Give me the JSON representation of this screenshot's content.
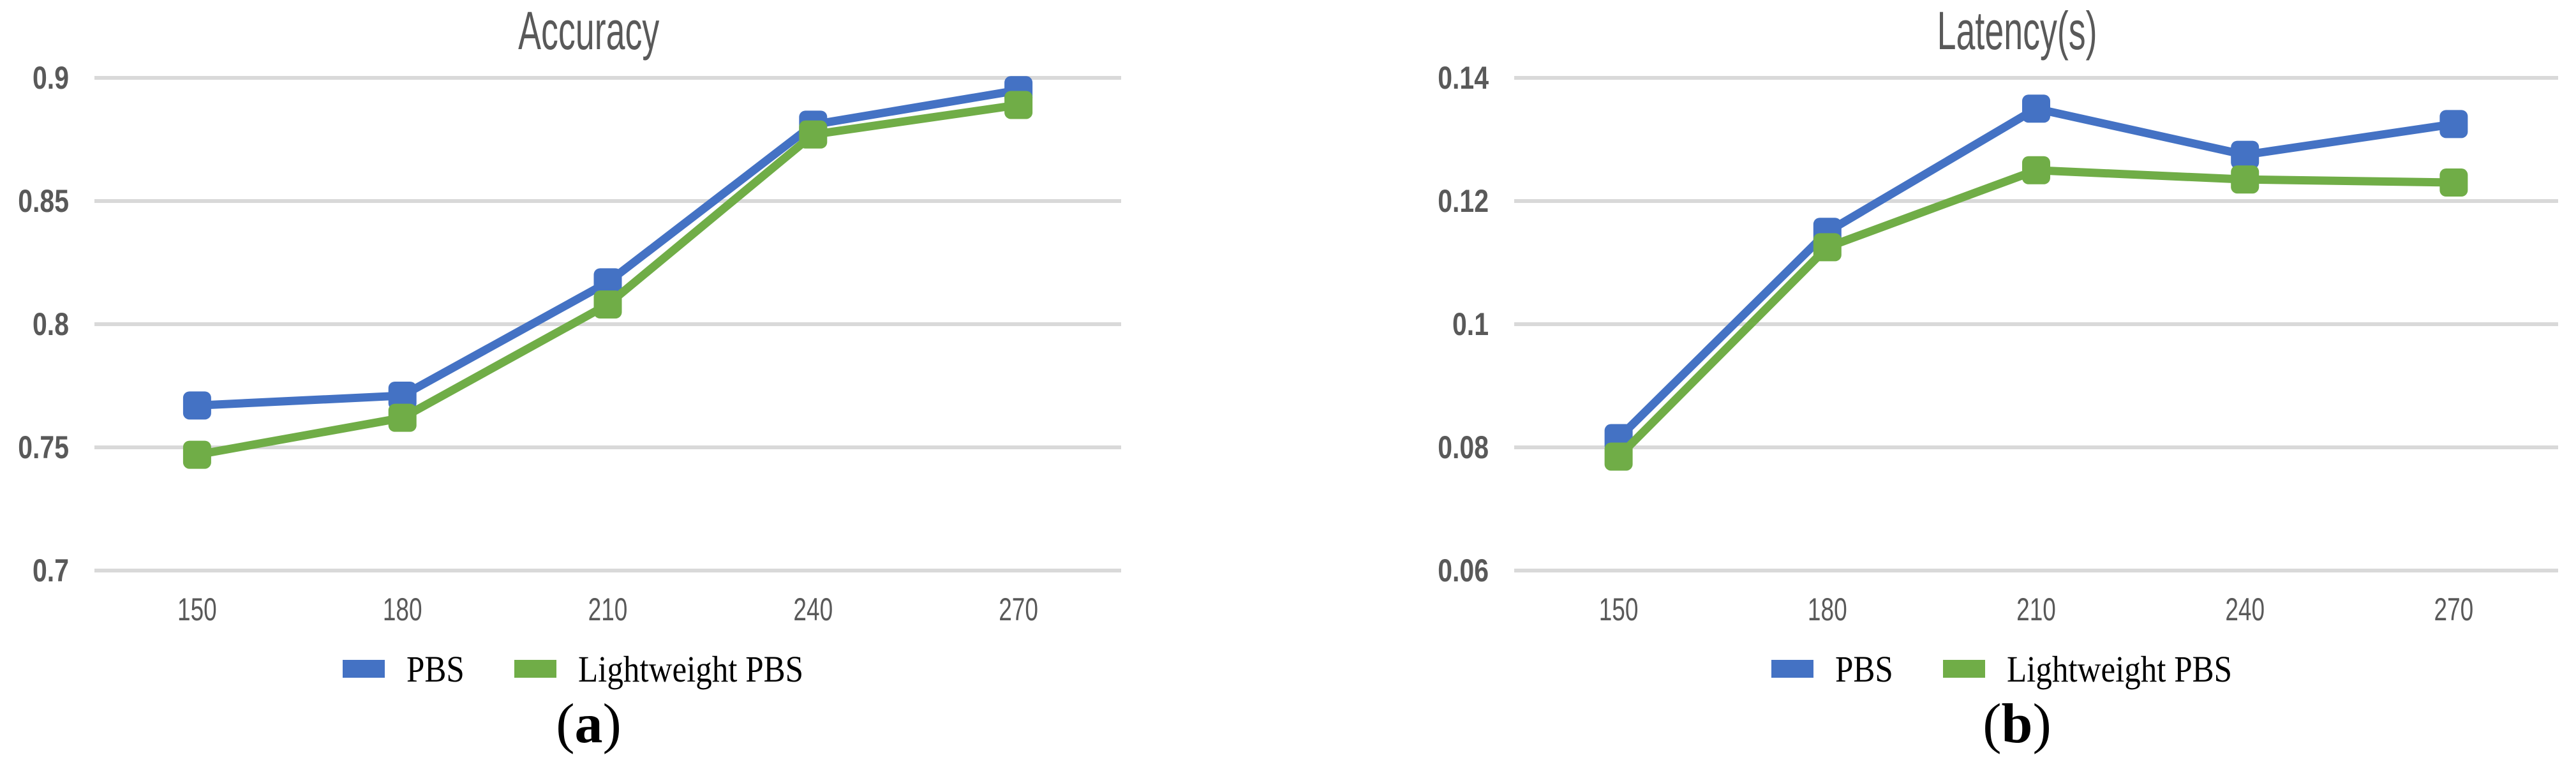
{
  "colors": {
    "pbs": "#4472C4",
    "lightweight_pbs": "#70AD47",
    "gridline": "#D9D9D9",
    "axis_text": "#595959",
    "title_text": "#595959",
    "legend_text": "#000000",
    "caption_text": "#000000",
    "background": "#FFFFFF"
  },
  "chart_data": [
    {
      "type": "line",
      "title": "Accuracy",
      "caption": "(a)",
      "categories": [
        "150",
        "180",
        "210",
        "240",
        "270"
      ],
      "series": [
        {
          "name": "PBS",
          "color": "#4472C4",
          "marker": "square",
          "values": [
            0.767,
            0.771,
            0.817,
            0.881,
            0.895
          ]
        },
        {
          "name": "Lightweight PBS",
          "color": "#70AD47",
          "marker": "square",
          "values": [
            0.747,
            0.762,
            0.808,
            0.877,
            0.889
          ]
        }
      ],
      "ylim": [
        0.7,
        0.9
      ],
      "yticks": [
        0.7,
        0.75,
        0.8,
        0.85,
        0.9
      ],
      "ytick_labels": [
        "0.7",
        "0.75",
        "0.8",
        "0.85",
        "0.9"
      ],
      "grid": true,
      "legend_position": "bottom"
    },
    {
      "type": "line",
      "title": "Latency(s)",
      "caption": "(b)",
      "categories": [
        "150",
        "180",
        "210",
        "240",
        "270"
      ],
      "series": [
        {
          "name": "PBS",
          "color": "#4472C4",
          "marker": "square",
          "values": [
            0.0815,
            0.115,
            0.135,
            0.1275,
            0.1325
          ]
        },
        {
          "name": "Lightweight PBS",
          "color": "#70AD47",
          "marker": "square",
          "values": [
            0.0785,
            0.1125,
            0.125,
            0.1235,
            0.123
          ]
        }
      ],
      "ylim": [
        0.06,
        0.14
      ],
      "yticks": [
        0.06,
        0.08,
        0.1,
        0.12,
        0.14
      ],
      "ytick_labels": [
        "0.06",
        "0.08",
        "0.1",
        "0.12",
        "0.14"
      ],
      "grid": true,
      "legend_position": "bottom"
    }
  ]
}
